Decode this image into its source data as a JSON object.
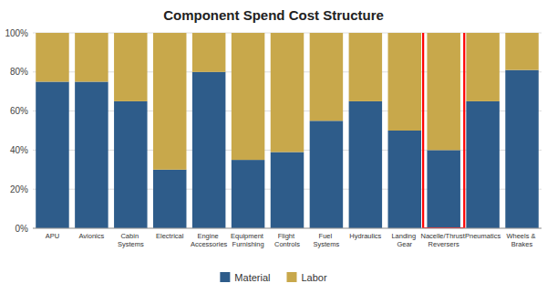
{
  "chart_data": {
    "type": "bar",
    "title": "Component Spend Cost Structure",
    "stacked": true,
    "categories": [
      "APU",
      "Avionics",
      "Cabin\nSystems",
      "Electrical",
      "Engine\nAccessories",
      "Equipment\nFurnishing",
      "Flight Controls",
      "Fuel Systems",
      "Hydraulics",
      "Landing Gear",
      "Nacelle/Thrust\nReversers",
      "Pneumatics",
      "Wheels &\nBrakes"
    ],
    "series": [
      {
        "name": "Material",
        "color": "#2E5C8A",
        "values": [
          75,
          75,
          65,
          30,
          80,
          35,
          39,
          55,
          65,
          50,
          40,
          65,
          81
        ]
      },
      {
        "name": "Labor",
        "color": "#C8A84B",
        "values": [
          25,
          25,
          35,
          70,
          20,
          65,
          61,
          45,
          35,
          50,
          60,
          35,
          19
        ]
      }
    ],
    "ylim": [
      0,
      100
    ],
    "yticks": [
      {
        "value": 0,
        "label": "0%"
      },
      {
        "value": 20,
        "label": "20%"
      },
      {
        "value": 40,
        "label": "40%"
      },
      {
        "value": 60,
        "label": "60%"
      },
      {
        "value": 80,
        "label": "80%"
      },
      {
        "value": 100,
        "label": "100%"
      }
    ],
    "grid": true,
    "legend": "bottom",
    "highlight": {
      "index": 10,
      "color": "red"
    }
  }
}
